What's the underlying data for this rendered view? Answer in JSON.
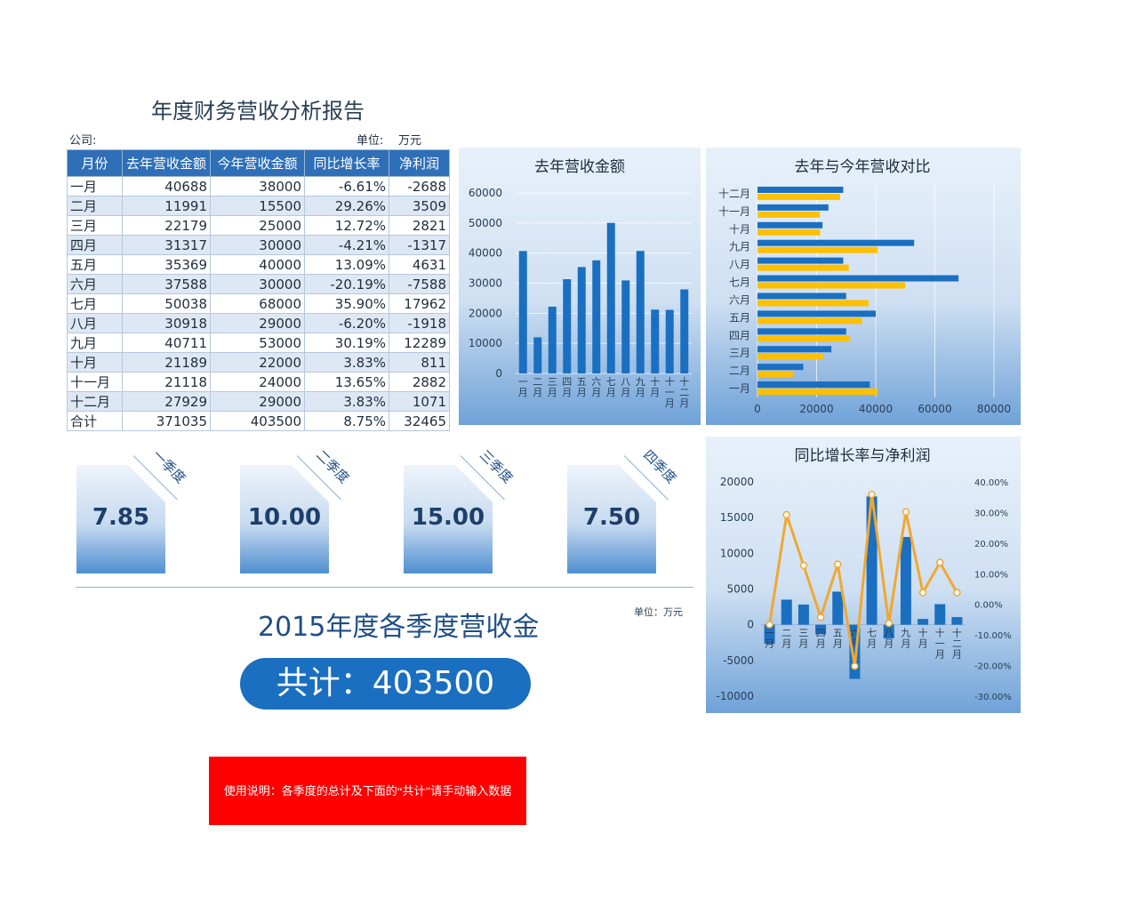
{
  "report": {
    "title": "年度财务营收分析报告",
    "company_label": "公司:",
    "unit_label": "单位:",
    "unit_value": "万元"
  },
  "table": {
    "headers": [
      "月份",
      "去年营收金额",
      "今年营收金额",
      "同比增长率",
      "净利润"
    ],
    "rows": [
      [
        "一月",
        "40688",
        "38000",
        "-6.61%",
        "-2688"
      ],
      [
        "二月",
        "11991",
        "15500",
        "29.26%",
        "3509"
      ],
      [
        "三月",
        "22179",
        "25000",
        "12.72%",
        "2821"
      ],
      [
        "四月",
        "31317",
        "30000",
        "-4.21%",
        "-1317"
      ],
      [
        "五月",
        "35369",
        "40000",
        "13.09%",
        "4631"
      ],
      [
        "六月",
        "37588",
        "30000",
        "-20.19%",
        "-7588"
      ],
      [
        "七月",
        "50038",
        "68000",
        "35.90%",
        "17962"
      ],
      [
        "八月",
        "30918",
        "29000",
        "-6.20%",
        "-1918"
      ],
      [
        "九月",
        "40711",
        "53000",
        "30.19%",
        "12289"
      ],
      [
        "十月",
        "21189",
        "22000",
        "3.83%",
        "811"
      ],
      [
        "十一月",
        "21118",
        "24000",
        "13.65%",
        "2882"
      ],
      [
        "十二月",
        "27929",
        "29000",
        "3.83%",
        "1071"
      ],
      [
        "合计",
        "371035",
        "403500",
        "8.75%",
        "32465"
      ]
    ]
  },
  "quarters": [
    {
      "label": "一季度",
      "value": "7.85"
    },
    {
      "label": "二季度",
      "value": "10.00"
    },
    {
      "label": "三季度",
      "value": "15.00"
    },
    {
      "label": "四季度",
      "value": "7.50"
    }
  ],
  "summary": {
    "title": "2015年度各季度营收金",
    "unit": "单位：万元",
    "total": "共计：403500"
  },
  "note": "使用说明：各季度的总计及下面的“共计”请手动输入数据",
  "colors": {
    "blue": "#1a6fc0",
    "gold": "#ffc000",
    "orange": "#f0a830",
    "header": "#2e6fb8"
  },
  "chart_data": [
    {
      "type": "bar",
      "title": "去年营收金额",
      "categories": [
        "一月",
        "二月",
        "三月",
        "四月",
        "五月",
        "六月",
        "七月",
        "八月",
        "九月",
        "十月",
        "十一月",
        "十二月"
      ],
      "values": [
        40688,
        11991,
        22179,
        31317,
        35369,
        37588,
        50038,
        30918,
        40711,
        21189,
        21118,
        27929
      ],
      "ylim": [
        0,
        60000
      ],
      "yticks": [
        0,
        10000,
        20000,
        30000,
        40000,
        50000,
        60000
      ],
      "grid": true
    },
    {
      "type": "bar",
      "orientation": "horizontal",
      "title": "去年与今年营收对比",
      "categories": [
        "一月",
        "二月",
        "三月",
        "四月",
        "五月",
        "六月",
        "七月",
        "八月",
        "九月",
        "十月",
        "十一月",
        "十二月"
      ],
      "series": [
        {
          "values": [
            38000,
            15500,
            25000,
            30000,
            40000,
            30000,
            68000,
            29000,
            53000,
            22000,
            24000,
            29000
          ],
          "color": "#1a6fc0"
        },
        {
          "values": [
            40688,
            11991,
            22179,
            31317,
            35369,
            37588,
            50038,
            30918,
            40711,
            21189,
            21118,
            27929
          ],
          "color": "#ffc000"
        }
      ],
      "xlim": [
        0,
        80000
      ],
      "xticks": [
        0,
        20000,
        40000,
        60000,
        80000
      ],
      "grid": true
    },
    {
      "type": "bar",
      "title": "同比增长率与净利润",
      "categories": [
        "一月",
        "二月",
        "三月",
        "四月",
        "五月",
        "六月",
        "七月",
        "八月",
        "九月",
        "十月",
        "十一月",
        "十二月"
      ],
      "series": [
        {
          "type": "bar",
          "axis": "left",
          "values": [
            -2688,
            3509,
            2821,
            -1317,
            4631,
            -7588,
            17962,
            -1918,
            12289,
            811,
            2882,
            1071
          ],
          "color": "#1a6fc0"
        },
        {
          "type": "line",
          "axis": "right",
          "values": [
            -6.61,
            29.26,
            12.72,
            -4.21,
            13.09,
            -20.19,
            35.9,
            -6.2,
            30.19,
            3.83,
            13.65,
            3.83
          ],
          "color": "#f0a830"
        }
      ],
      "ylim": [
        -10000,
        20000
      ],
      "yticks": [
        -10000,
        -5000,
        0,
        5000,
        10000,
        15000,
        20000
      ],
      "y2lim": [
        -30,
        40
      ],
      "y2ticks": [
        "-30.00%",
        "-20.00%",
        "-10.00%",
        "0.00%",
        "10.00%",
        "20.00%",
        "30.00%",
        "40.00%"
      ]
    }
  ]
}
